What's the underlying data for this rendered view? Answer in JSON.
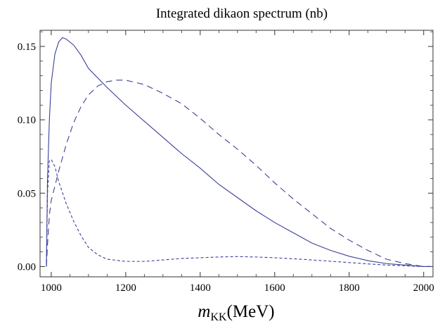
{
  "chart_data": {
    "type": "line",
    "title": "Integrated dikaon spectrum (nb)",
    "xlabel": {
      "var": "m",
      "sub": "KK",
      "unit": "(MeV)"
    },
    "ylabel": "",
    "xlim": [
      970,
      2025
    ],
    "ylim": [
      -0.007,
      0.161
    ],
    "xticks": [
      1000,
      1200,
      1400,
      1600,
      1800,
      2000
    ],
    "yticks": [
      0.0,
      0.05,
      0.1,
      0.15
    ],
    "ytick_labels": [
      "0.00",
      "0.05",
      "0.10",
      "0.15"
    ],
    "grid": false,
    "color": "#3b3f99",
    "series": [
      {
        "style": "solid",
        "points": [
          [
            987,
            0
          ],
          [
            988,
            0.02
          ],
          [
            990,
            0.06
          ],
          [
            995,
            0.1
          ],
          [
            1000,
            0.125
          ],
          [
            1010,
            0.145
          ],
          [
            1020,
            0.153
          ],
          [
            1030,
            0.156
          ],
          [
            1040,
            0.155
          ],
          [
            1060,
            0.151
          ],
          [
            1080,
            0.144
          ],
          [
            1100,
            0.135
          ],
          [
            1150,
            0.122
          ],
          [
            1200,
            0.11
          ],
          [
            1250,
            0.099
          ],
          [
            1300,
            0.088
          ],
          [
            1350,
            0.077
          ],
          [
            1400,
            0.067
          ],
          [
            1450,
            0.056
          ],
          [
            1500,
            0.047
          ],
          [
            1550,
            0.038
          ],
          [
            1600,
            0.03
          ],
          [
            1650,
            0.023
          ],
          [
            1700,
            0.016
          ],
          [
            1750,
            0.011
          ],
          [
            1800,
            0.007
          ],
          [
            1850,
            0.004
          ],
          [
            1900,
            0.002
          ],
          [
            1950,
            0.001
          ],
          [
            2000,
            0.0
          ],
          [
            2020,
            0.0
          ]
        ]
      },
      {
        "style": "dashed",
        "points": [
          [
            987,
            0
          ],
          [
            990,
            0.015
          ],
          [
            995,
            0.035
          ],
          [
            1000,
            0.045
          ],
          [
            1020,
            0.065
          ],
          [
            1040,
            0.083
          ],
          [
            1060,
            0.098
          ],
          [
            1080,
            0.109
          ],
          [
            1100,
            0.117
          ],
          [
            1125,
            0.123
          ],
          [
            1150,
            0.126
          ],
          [
            1175,
            0.127
          ],
          [
            1200,
            0.127
          ],
          [
            1250,
            0.124
          ],
          [
            1300,
            0.118
          ],
          [
            1350,
            0.111
          ],
          [
            1400,
            0.101
          ],
          [
            1450,
            0.09
          ],
          [
            1500,
            0.08
          ],
          [
            1550,
            0.069
          ],
          [
            1600,
            0.057
          ],
          [
            1650,
            0.046
          ],
          [
            1700,
            0.036
          ],
          [
            1750,
            0.026
          ],
          [
            1800,
            0.018
          ],
          [
            1850,
            0.011
          ],
          [
            1900,
            0.005
          ],
          [
            1950,
            0.002
          ],
          [
            1975,
            0.001
          ],
          [
            2000,
            0.0
          ],
          [
            2020,
            0.0
          ]
        ]
      },
      {
        "style": "short-dashed",
        "points": [
          [
            987,
            0
          ],
          [
            990,
            0.05
          ],
          [
            995,
            0.072
          ],
          [
            1000,
            0.073
          ],
          [
            1010,
            0.068
          ],
          [
            1020,
            0.058
          ],
          [
            1040,
            0.043
          ],
          [
            1060,
            0.031
          ],
          [
            1080,
            0.021
          ],
          [
            1100,
            0.013
          ],
          [
            1125,
            0.008
          ],
          [
            1150,
            0.005
          ],
          [
            1200,
            0.0035
          ],
          [
            1250,
            0.0035
          ],
          [
            1300,
            0.0045
          ],
          [
            1350,
            0.0055
          ],
          [
            1400,
            0.006
          ],
          [
            1450,
            0.0065
          ],
          [
            1500,
            0.0068
          ],
          [
            1550,
            0.0065
          ],
          [
            1600,
            0.006
          ],
          [
            1650,
            0.0053
          ],
          [
            1700,
            0.0045
          ],
          [
            1750,
            0.0036
          ],
          [
            1800,
            0.0027
          ],
          [
            1850,
            0.0018
          ],
          [
            1900,
            0.001
          ],
          [
            1950,
            0.0005
          ],
          [
            2000,
            0.0
          ],
          [
            2020,
            0.0
          ]
        ]
      }
    ]
  }
}
